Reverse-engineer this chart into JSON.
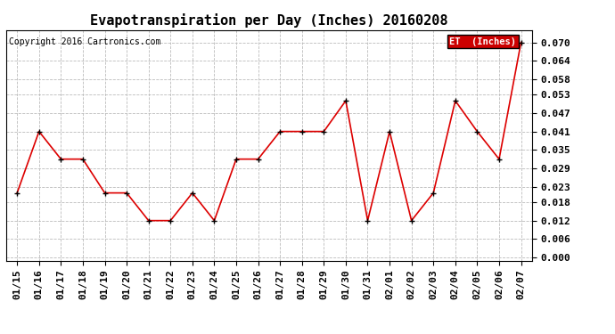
{
  "title": "Evapotranspiration per Day (Inches) 20160208",
  "copyright": "Copyright 2016 Cartronics.com",
  "legend_label": "ET  (Inches)",
  "x_labels": [
    "01/15",
    "01/16",
    "01/17",
    "01/18",
    "01/19",
    "01/20",
    "01/21",
    "01/22",
    "01/23",
    "01/24",
    "01/25",
    "01/26",
    "01/27",
    "01/28",
    "01/29",
    "01/30",
    "01/31",
    "02/01",
    "02/02",
    "02/03",
    "02/04",
    "02/05",
    "02/06",
    "02/07"
  ],
  "y_values": [
    0.021,
    0.041,
    0.032,
    0.032,
    0.021,
    0.021,
    0.012,
    0.012,
    0.021,
    0.012,
    0.032,
    0.032,
    0.041,
    0.041,
    0.041,
    0.051,
    0.012,
    0.041,
    0.012,
    0.021,
    0.051,
    0.041,
    0.032,
    0.07
  ],
  "line_color": "#dd0000",
  "marker_color": "#000000",
  "background_color": "#ffffff",
  "grid_color": "#bbbbbb",
  "legend_bg": "#cc0000",
  "legend_text_color": "#ffffff",
  "ylim": [
    -0.001,
    0.074
  ],
  "yticks": [
    0.0,
    0.006,
    0.012,
    0.018,
    0.023,
    0.029,
    0.035,
    0.041,
    0.047,
    0.053,
    0.058,
    0.064,
    0.07
  ],
  "title_fontsize": 11,
  "tick_fontsize": 8,
  "copyright_fontsize": 7
}
